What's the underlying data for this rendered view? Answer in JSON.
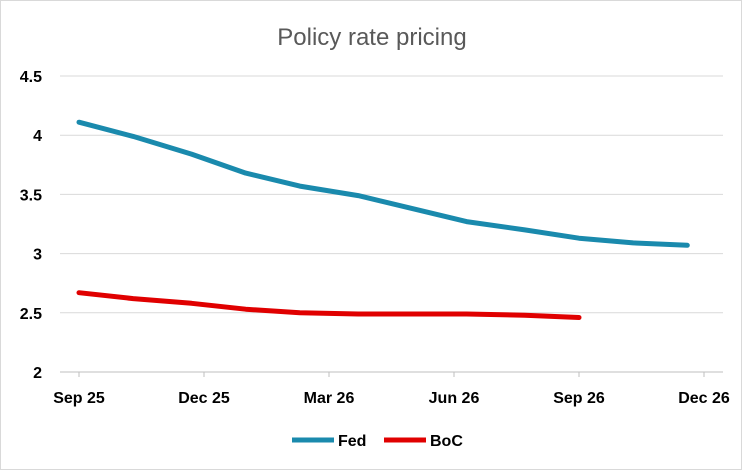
{
  "chart_data": {
    "type": "line",
    "title": "Policy rate pricing",
    "xlabel": "",
    "ylabel": "",
    "ylim": [
      2,
      4.5
    ],
    "yticks": [
      "2",
      "2.5",
      "3",
      "3.5",
      "4",
      "4.5"
    ],
    "ytick_values": [
      2,
      2.5,
      3,
      3.5,
      4,
      4.5
    ],
    "xlim": [
      0,
      15
    ],
    "xticks": [
      "Sep 25",
      "Dec 25",
      "Mar 26",
      "Jun 26",
      "Sep 26",
      "Dec 26"
    ],
    "xtick_values": [
      0,
      3,
      6,
      9,
      12,
      15
    ],
    "grid": true,
    "legend": "bottom",
    "series": [
      {
        "name": "Fed",
        "color": "#1a8aad",
        "x": [
          0,
          1.3,
          2.7,
          4.0,
          5.3,
          6.7,
          8.0,
          9.3,
          10.7,
          12.0,
          13.3,
          14.6
        ],
        "values": [
          4.11,
          3.99,
          3.84,
          3.68,
          3.57,
          3.49,
          3.38,
          3.27,
          3.2,
          3.13,
          3.09,
          3.07
        ]
      },
      {
        "name": "BoC",
        "color": "#e00000",
        "x": [
          0,
          1.3,
          2.7,
          4.0,
          5.3,
          6.7,
          8.0,
          9.3,
          10.7,
          12.0
        ],
        "values": [
          2.67,
          2.62,
          2.58,
          2.53,
          2.5,
          2.49,
          2.49,
          2.49,
          2.48,
          2.46
        ]
      }
    ]
  }
}
